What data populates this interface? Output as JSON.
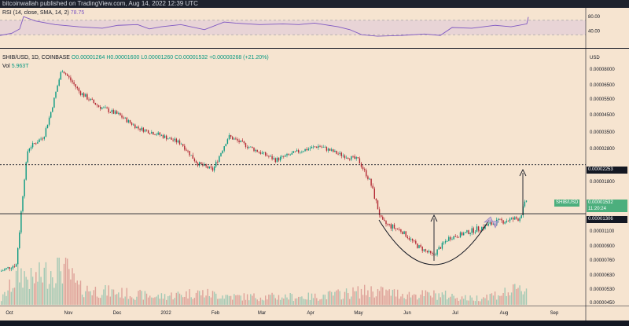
{
  "header": {
    "attribution": "bitcoinwallah published on TradingView.com, Aug 14, 2022 12:39 UTC"
  },
  "rsi": {
    "legend": {
      "name": "RSI",
      "params": "(14, close, SMA, 14, 2)",
      "value": "78.75"
    },
    "ticks": [
      "80.00",
      "40.00"
    ],
    "upper_band": 70,
    "lower_band": 30,
    "points": [
      [
        0,
        28
      ],
      [
        15,
        34
      ],
      [
        25,
        46
      ],
      [
        30,
        80
      ],
      [
        45,
        68
      ],
      [
        70,
        58
      ],
      [
        100,
        52
      ],
      [
        130,
        48
      ],
      [
        150,
        56
      ],
      [
        175,
        58
      ],
      [
        190,
        46
      ],
      [
        205,
        52
      ],
      [
        230,
        58
      ],
      [
        260,
        44
      ],
      [
        285,
        65
      ],
      [
        300,
        62
      ],
      [
        330,
        58
      ],
      [
        360,
        60
      ],
      [
        380,
        58
      ],
      [
        400,
        62
      ],
      [
        430,
        52
      ],
      [
        445,
        44
      ],
      [
        460,
        30
      ],
      [
        480,
        26
      ],
      [
        510,
        28
      ],
      [
        540,
        32
      ],
      [
        560,
        28
      ],
      [
        575,
        50
      ],
      [
        600,
        48
      ],
      [
        630,
        56
      ],
      [
        650,
        52
      ],
      [
        670,
        60
      ],
      [
        672,
        79
      ]
    ]
  },
  "main": {
    "legend": {
      "pair": "SHIB/USD, 1D, COINBASE",
      "open": "O0.00001264",
      "high": "H0.00001600",
      "low": "L0.00001260",
      "close": "C0.00001532",
      "change": "+0.00000268 (+21.20%)",
      "vol_label": "Vol",
      "vol_value": "5.963T"
    },
    "currency": "USD",
    "price_ticks": [
      "0.00008000",
      "0.00006500",
      "0.00005500",
      "0.00004500",
      "0.00003500",
      "0.00002800",
      "0.00001800",
      "0.00001100",
      "0.00000900",
      "0.00000760",
      "0.00000630",
      "0.00000530",
      "0.00000450"
    ],
    "date_ticks": [
      "Oct",
      "Nov",
      "Dec",
      "2022",
      "Feb",
      "Mar",
      "Apr",
      "May",
      "Jun",
      "Jul",
      "Aug",
      "Sep"
    ],
    "level_upper": {
      "value": "0.00002253",
      "style": "dotted"
    },
    "level_lower": {
      "value": "0.00001306",
      "style": "solid"
    },
    "last_price_badge": {
      "symbol": "SHIB/USD",
      "price": "0.00001532",
      "countdown": "11:20:24"
    },
    "colors": {
      "up": "#089981",
      "down": "#b22833",
      "price_badge": "#4caf7d",
      "rsi_line": "#7e57c2"
    }
  },
  "chart_data": {
    "type": "candlestick",
    "symbol": "SHIB/USD",
    "interval": "1D",
    "exchange": "COINBASE",
    "price_path": [
      [
        0,
        6.6e-06
      ],
      [
        20,
        7.2e-06
      ],
      [
        25,
        1.2e-05
      ],
      [
        35,
        2.8e-05
      ],
      [
        55,
        3.3e-05
      ],
      [
        78,
        8e-05
      ],
      [
        100,
        6e-05
      ],
      [
        125,
        5e-05
      ],
      [
        150,
        4.5e-05
      ],
      [
        175,
        3.7e-05
      ],
      [
        200,
        3.4e-05
      ],
      [
        230,
        3e-05
      ],
      [
        250,
        2.3e-05
      ],
      [
        270,
        2.1e-05
      ],
      [
        290,
        3.3e-05
      ],
      [
        320,
        2.8e-05
      ],
      [
        350,
        2.4e-05
      ],
      [
        380,
        2.7e-05
      ],
      [
        405,
        2.9e-05
      ],
      [
        430,
        2.6e-05
      ],
      [
        455,
        2.4e-05
      ],
      [
        470,
        1.8e-05
      ],
      [
        485,
        1.2e-05
      ],
      [
        510,
        1.1e-05
      ],
      [
        530,
        9e-06
      ],
      [
        550,
        8e-06
      ],
      [
        570,
        1e-05
      ],
      [
        600,
        1.1e-05
      ],
      [
        630,
        1.2e-05
      ],
      [
        660,
        1.25e-05
      ],
      [
        670,
        1.53e-05
      ]
    ],
    "volume_path": [
      [
        0,
        0.1
      ],
      [
        25,
        0.8
      ],
      [
        40,
        0.6
      ],
      [
        78,
        1.0
      ],
      [
        100,
        0.4
      ],
      [
        150,
        0.3
      ],
      [
        200,
        0.2
      ],
      [
        250,
        0.3
      ],
      [
        300,
        0.2
      ],
      [
        400,
        0.2
      ],
      [
        470,
        0.35
      ],
      [
        520,
        0.25
      ],
      [
        560,
        0.25
      ],
      [
        600,
        0.15
      ],
      [
        670,
        0.4
      ]
    ]
  }
}
